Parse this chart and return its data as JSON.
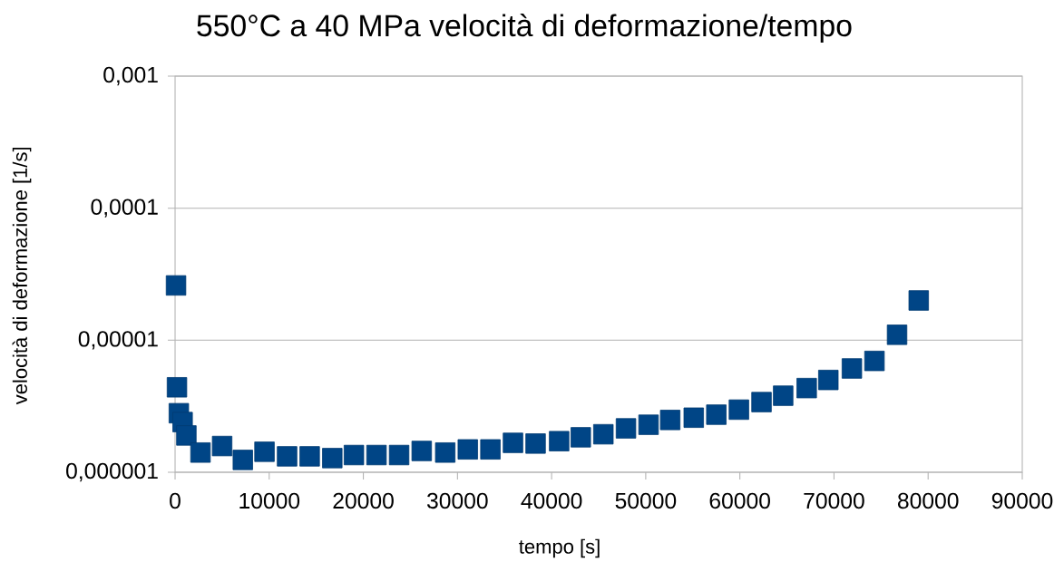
{
  "chart_data": {
    "type": "scatter",
    "title": "550°C a 40 MPa velocità di deformazione/tempo",
    "xlabel": "tempo [s]",
    "ylabel": "velocità di deformazione [1/s]",
    "log": "y",
    "grid": "y",
    "marker": "square",
    "color": "#004586",
    "x": [
      100,
      200,
      400,
      800,
      1200,
      2700,
      5000,
      7200,
      9500,
      11900,
      14300,
      16700,
      19000,
      21400,
      23800,
      26200,
      28700,
      31100,
      33500,
      35900,
      38300,
      40800,
      43100,
      45500,
      47900,
      50300,
      52600,
      55100,
      57500,
      59900,
      62300,
      64600,
      67100,
      69400,
      71900,
      74300,
      76700,
      79000
    ],
    "values": [
      2.6e-05,
      4.4e-06,
      2.8e-06,
      2.4e-06,
      1.9e-06,
      1.41e-06,
      1.58e-06,
      1.24e-06,
      1.43e-06,
      1.32e-06,
      1.32e-06,
      1.28e-06,
      1.35e-06,
      1.35e-06,
      1.35e-06,
      1.45e-06,
      1.41e-06,
      1.49e-06,
      1.49e-06,
      1.67e-06,
      1.65e-06,
      1.72e-06,
      1.84e-06,
      1.94e-06,
      2.15e-06,
      2.29e-06,
      2.49e-06,
      2.59e-06,
      2.73e-06,
      2.98e-06,
      3.4e-06,
      3.8e-06,
      4.34e-06,
      5e-06,
      6.11e-06,
      6.97e-06,
      1.1e-05,
      2e-05
    ],
    "xlim": [
      0,
      90000
    ],
    "xticks": [
      0,
      10000,
      20000,
      30000,
      40000,
      50000,
      60000,
      70000,
      80000,
      90000
    ],
    "ylim": [
      1e-06,
      0.001
    ],
    "yticks": [
      {
        "value": 1e-06,
        "label": "0,000001"
      },
      {
        "value": 1e-05,
        "label": "0,00001"
      },
      {
        "value": 0.0001,
        "label": "0,0001"
      },
      {
        "value": 0.001,
        "label": "0,001"
      }
    ]
  }
}
